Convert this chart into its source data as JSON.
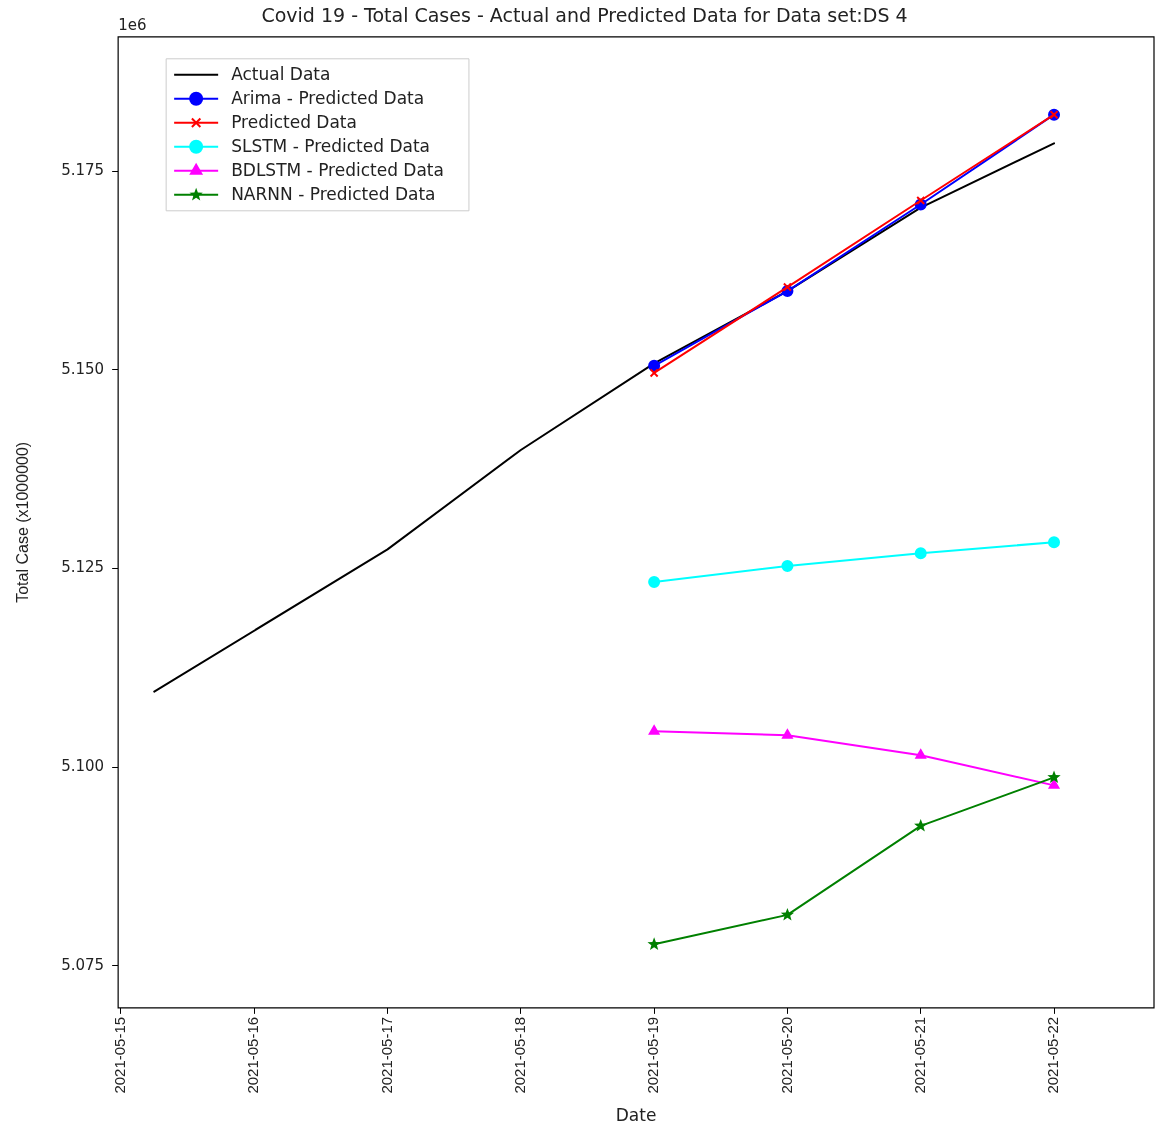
{
  "chart_data": {
    "type": "line",
    "title": "Covid 19 - Total Cases - Actual and Predicted Data for Data set:DS 4",
    "xlabel": "Date",
    "ylabel": "Total Case (x1000000)",
    "annotations": [
      "1e6"
    ],
    "xlim": [
      "2021-05-14T23:30",
      "2021-05-22T18:00"
    ],
    "xticks": [
      "2021-05-15",
      "2021-05-16",
      "2021-05-17",
      "2021-05-18",
      "2021-05-19",
      "2021-05-20",
      "2021-05-21",
      "2021-05-22"
    ],
    "ylim": [
      5.0697,
      5.1919
    ],
    "yticks": [
      5.075,
      {
        "value": 5.1,
        "label": "5.100"
      },
      5.125,
      {
        "value": 5.15,
        "label": "5.150"
      },
      5.175
    ],
    "grid": false,
    "legend": "top left",
    "series": [
      {
        "name": "Actual Data",
        "color": "#000000",
        "marker": "none",
        "x": [
          "2021-05-15T06:00",
          "2021-05-17",
          "2021-05-18",
          "2021-05-19",
          "2021-05-20",
          "2021-05-21",
          "2021-05-22"
        ],
        "values": [
          5.1095,
          5.1274,
          5.1399,
          5.1508,
          5.1599,
          5.1704,
          5.1785
        ]
      },
      {
        "name": "Arima - Predicted Data",
        "color": "#0000ff",
        "marker": "circle",
        "x": [
          "2021-05-19",
          "2021-05-20",
          "2021-05-21",
          "2021-05-22"
        ],
        "values": [
          5.1505,
          5.1599,
          5.1708,
          5.1821
        ]
      },
      {
        "name": "Predicted Data",
        "color": "#ff0000",
        "marker": "cross",
        "x": [
          "2021-05-19",
          "2021-05-20",
          "2021-05-21",
          "2021-05-22"
        ],
        "values": [
          5.1496,
          5.1604,
          5.1713,
          5.1821
        ]
      },
      {
        "name": "SLSTM - Predicted Data",
        "color": "#00ffff",
        "marker": "circle",
        "x": [
          "2021-05-19",
          "2021-05-20",
          "2021-05-21",
          "2021-05-22"
        ],
        "values": [
          5.1233,
          5.1253,
          5.1269,
          5.1283
        ]
      },
      {
        "name": "BDLSTM - Predicted Data",
        "color": "#ff00ff",
        "marker": "triangle",
        "x": [
          "2021-05-19",
          "2021-05-20",
          "2021-05-21",
          "2021-05-22"
        ],
        "values": [
          5.1045,
          5.104,
          5.1015,
          5.0977
        ]
      },
      {
        "name": "NARNN - Predicted Data",
        "color": "#008000",
        "marker": "star",
        "x": [
          "2021-05-19",
          "2021-05-20",
          "2021-05-21",
          "2021-05-22"
        ],
        "values": [
          5.0777,
          5.0814,
          5.0926,
          5.0987
        ]
      }
    ]
  }
}
